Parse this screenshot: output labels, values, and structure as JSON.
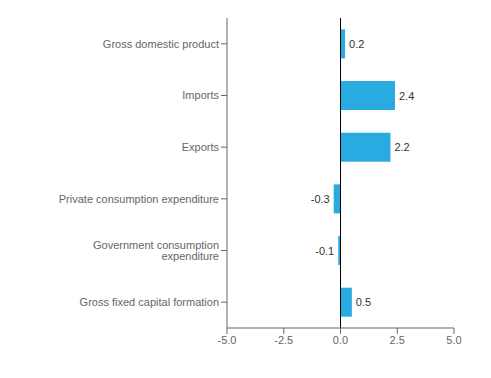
{
  "chart_data": {
    "type": "bar",
    "orientation": "horizontal",
    "categories": [
      "Gross fixed capital formation",
      "Government consumption expenditure",
      "Private consumption expenditure",
      "Exports",
      "Imports",
      "Gross domestic product"
    ],
    "values": [
      0.5,
      -0.1,
      -0.3,
      2.2,
      2.4,
      0.2
    ],
    "color": "#29abe2",
    "xlim": [
      -5.0,
      5.0
    ],
    "xticks": [
      {
        "value": -5.0,
        "label": "-5.0"
      },
      -2.5,
      {
        "value": 0.0,
        "label": "0.0"
      },
      2.5,
      {
        "value": 5.0,
        "label": "5.0"
      }
    ],
    "data_labels": true,
    "grid": false
  }
}
